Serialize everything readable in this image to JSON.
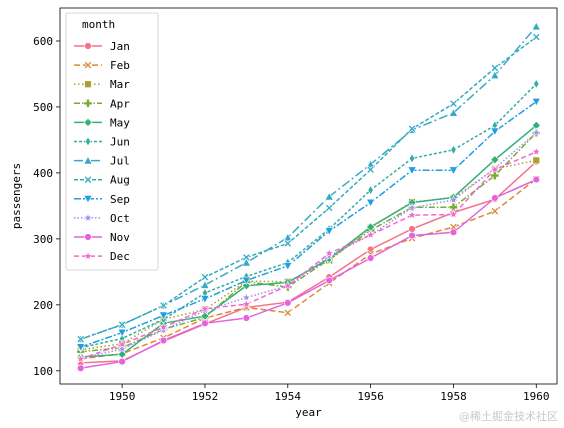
{
  "chart_data": {
    "type": "line",
    "xlabel": "year",
    "ylabel": "passengers",
    "xlim": [
      1948.5,
      1960.5
    ],
    "ylim": [
      80,
      650
    ],
    "xticks": [
      1950,
      1952,
      1954,
      1956,
      1958,
      1960
    ],
    "yticks": [
      100,
      200,
      300,
      400,
      500,
      600
    ],
    "legend": {
      "title": "month",
      "placement": "upper-left"
    },
    "x": [
      1949,
      1950,
      1951,
      1952,
      1953,
      1954,
      1955,
      1956,
      1957,
      1958,
      1959,
      1960
    ],
    "series": [
      {
        "name": "Jan",
        "color": "#f77189",
        "dash": "",
        "marker": "circle",
        "values": [
          112,
          115,
          145,
          171,
          196,
          204,
          242,
          284,
          315,
          340,
          360,
          417
        ]
      },
      {
        "name": "Feb",
        "color": "#dc8932",
        "dash": "6,3",
        "marker": "x",
        "values": [
          118,
          126,
          150,
          180,
          196,
          188,
          233,
          277,
          301,
          318,
          342,
          391
        ]
      },
      {
        "name": "Mar",
        "color": "#ae9d31",
        "dash": "1.5,2.5",
        "marker": "square",
        "values": [
          132,
          141,
          178,
          193,
          236,
          235,
          267,
          317,
          356,
          362,
          406,
          419
        ]
      },
      {
        "name": "Apr",
        "color": "#77ab31",
        "dash": "6,2,1.5,2",
        "marker": "plus",
        "values": [
          129,
          135,
          163,
          181,
          235,
          227,
          269,
          313,
          348,
          348,
          396,
          461
        ]
      },
      {
        "name": "May",
        "color": "#33b07a",
        "dash": "",
        "marker": "diamond",
        "values": [
          121,
          125,
          172,
          183,
          229,
          234,
          270,
          318,
          355,
          363,
          420,
          472
        ]
      },
      {
        "name": "Jun",
        "color": "#36ada4",
        "dash": "3,2",
        "marker": "thin-diamond",
        "values": [
          135,
          149,
          178,
          218,
          243,
          264,
          315,
          374,
          422,
          435,
          472,
          535
        ]
      },
      {
        "name": "Jul",
        "color": "#38a9c5",
        "dash": "9,3,2,3",
        "marker": "triangle-up",
        "values": [
          148,
          170,
          199,
          230,
          264,
          302,
          364,
          413,
          465,
          491,
          548,
          622
        ]
      },
      {
        "name": "Aug",
        "color": "#32a8c1",
        "dash": "4,2",
        "marker": "x",
        "values": [
          148,
          170,
          199,
          242,
          272,
          293,
          347,
          405,
          467,
          505,
          559,
          606
        ]
      },
      {
        "name": "Sep",
        "color": "#1f9ee0",
        "dash": "7,2,2,2",
        "marker": "triangle-down",
        "values": [
          136,
          158,
          184,
          209,
          237,
          259,
          312,
          355,
          404,
          404,
          463,
          508
        ]
      },
      {
        "name": "Oct",
        "color": "#a48cf4",
        "dash": "1.5,2",
        "marker": "star",
        "values": [
          119,
          133,
          162,
          191,
          211,
          229,
          274,
          306,
          347,
          359,
          407,
          461
        ]
      },
      {
        "name": "Nov",
        "color": "#e363e0",
        "dash": "",
        "marker": "circle",
        "values": [
          104,
          114,
          146,
          172,
          180,
          203,
          237,
          271,
          305,
          310,
          362,
          390
        ]
      },
      {
        "name": "Dec",
        "color": "#f564d4",
        "dash": "5,3",
        "marker": "star",
        "values": [
          118,
          140,
          166,
          194,
          201,
          229,
          278,
          306,
          336,
          337,
          405,
          432
        ]
      }
    ]
  },
  "watermark": "@稀土掘金技术社区"
}
